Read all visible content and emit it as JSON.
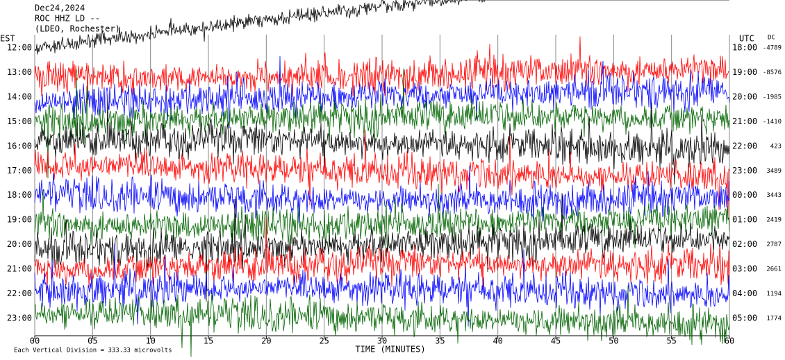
{
  "chart_data": {
    "type": "helicorder",
    "title_lines": [
      "Dec24,2024",
      "ROC HHZ LD --",
      "(LDEO, Rochester)"
    ],
    "left_axis_label": "EST",
    "right_axis_label": "UTC",
    "dc_label": "DC",
    "xlabel": "TIME (MINUTES)",
    "xlim": [
      0,
      60
    ],
    "xticks": [
      {
        "value": 0,
        "label": "00"
      },
      {
        "value": 5,
        "label": "05"
      },
      10,
      15,
      20,
      25,
      30,
      35,
      40,
      45,
      50,
      55,
      60
    ],
    "grid": true,
    "rows": [
      {
        "est": "12:00",
        "utc": "18:00",
        "dc": -4789,
        "color": "#000000"
      },
      {
        "est": "13:00",
        "utc": "19:00",
        "dc": -8576,
        "color": "#ff0000"
      },
      {
        "est": "14:00",
        "utc": "20:00",
        "dc": -1985,
        "color": "#0000ff"
      },
      {
        "est": "15:00",
        "utc": "21:00",
        "dc": -1410,
        "color": "#006400"
      },
      {
        "est": "16:00",
        "utc": "22:00",
        "dc": 423,
        "color": "#000000"
      },
      {
        "est": "17:00",
        "utc": "23:00",
        "dc": 3489,
        "color": "#ff0000"
      },
      {
        "est": "18:00",
        "utc": "00:00",
        "dc": 3443,
        "color": "#0000ff"
      },
      {
        "est": "19:00",
        "utc": "01:00",
        "dc": 2419,
        "color": "#006400"
      },
      {
        "est": "20:00",
        "utc": "02:00",
        "dc": 2787,
        "color": "#000000"
      },
      {
        "est": "21:00",
        "utc": "03:00",
        "dc": 2661,
        "color": "#ff0000"
      },
      {
        "est": "22:00",
        "utc": "04:00",
        "dc": 1194,
        "color": "#0000ff"
      },
      {
        "est": "23:00",
        "utc": "05:00",
        "dc": 1774,
        "color": "#006400"
      }
    ],
    "footer": "Each Vertical Division = 333.33 microvolts"
  }
}
